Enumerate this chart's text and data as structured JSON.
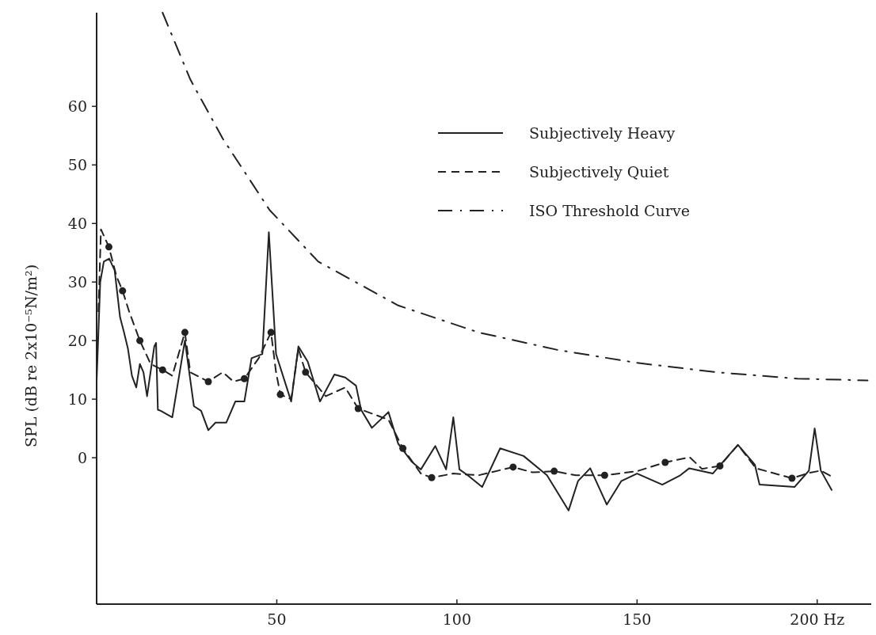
{
  "chart_data": {
    "type": "line",
    "ylabel": "SPL (dB re 2x10⁻⁵N/m²)",
    "xlim": [
      0,
      215
    ],
    "xticks": [
      50,
      100,
      150,
      {
        "value": 200,
        "label": "200 Hz"
      }
    ],
    "ylim": [
      -25,
      76
    ],
    "yticks": [
      0,
      10,
      20,
      30,
      40,
      50,
      60
    ],
    "grid": false,
    "legend": "top right",
    "series": [
      {
        "name": "Subjectively Heavy",
        "color": "#222222",
        "line_style": "solid",
        "x": [
          0,
          1,
          2,
          3.5,
          5,
          6.5,
          7.6,
          8.7,
          9.8,
          11,
          12,
          13,
          14,
          16,
          16.5,
          17,
          17.8,
          21,
          24.5,
          27,
          29,
          31,
          33,
          36,
          38.5,
          41,
          43,
          46,
          47.8,
          49.8,
          54,
          56,
          58.6,
          62,
          66,
          69,
          72,
          73.4,
          76.4,
          81,
          83.7,
          87.5,
          90,
          94,
          97,
          99,
          100.7,
          103,
          107,
          112,
          118.5,
          125,
          131,
          133.6,
          137,
          141.6,
          145.6,
          150,
          157,
          162,
          164.5,
          171,
          178,
          182.7,
          184,
          193.7,
          197.7,
          199.3,
          201,
          204
        ],
        "values": [
          13,
          30,
          33.5,
          34,
          32,
          24,
          21.4,
          18.6,
          14,
          12,
          16,
          14.6,
          10.5,
          19,
          19.6,
          8.2,
          8,
          6.9,
          20,
          8.8,
          8,
          4.7,
          6,
          6,
          9.6,
          9.6,
          17,
          17.7,
          38.5,
          17.7,
          9.6,
          19,
          16.4,
          9.6,
          14.2,
          13.7,
          12.3,
          8.2,
          5.1,
          7.8,
          2.4,
          -0.7,
          -2,
          2,
          -2,
          6.9,
          -2,
          -3,
          -5,
          1.6,
          0.3,
          -3,
          -9,
          -4,
          -1.8,
          -8,
          -4,
          -2.7,
          -4.6,
          -3,
          -1.8,
          -2.7,
          2.2,
          -1.2,
          -4.6,
          -5,
          -2.2,
          5,
          -2.2,
          -5.5
        ]
      },
      {
        "name": "Subjectively Quiet",
        "color": "#222222",
        "line_style": "dashed",
        "x": [
          0.5,
          1.2,
          3.4,
          5.5,
          7.2,
          9,
          12,
          15,
          18.3,
          21,
          24.5,
          26,
          31,
          35,
          38,
          41,
          45,
          48.4,
          49.8,
          51,
          54,
          56,
          58,
          63.6,
          69,
          72.6,
          81,
          85,
          90,
          93,
          99,
          106,
          115.6,
          121,
          127,
          133,
          141,
          150,
          157.8,
          164.6,
          168,
          173,
          178,
          183,
          193,
          197.7,
          201,
          204
        ],
        "values": [
          25,
          39,
          36,
          31,
          28.5,
          25,
          20,
          16,
          15,
          14,
          21.4,
          14.6,
          13,
          14.6,
          13,
          13.5,
          17,
          21.4,
          14.6,
          10.8,
          10,
          18.6,
          14.6,
          10.5,
          12,
          8.4,
          6.5,
          1.6,
          -2.7,
          -3.4,
          -2.7,
          -3,
          -1.6,
          -2.5,
          -2.3,
          -3,
          -3,
          -2.3,
          -0.8,
          0.1,
          -1.9,
          -1.4,
          2.2,
          -1.8,
          -3.5,
          -2.6,
          -2.2,
          -3.2
        ]
      },
      {
        "type": "scatter",
        "color": "#222222",
        "marker": "circle",
        "x": [
          3.4,
          7.2,
          12,
          18.3,
          24.5,
          31,
          41,
          48.4,
          51,
          58,
          72.6,
          85,
          93,
          115.6,
          127,
          141,
          157.8,
          173,
          193
        ],
        "values": [
          36,
          28.5,
          20,
          15,
          21.4,
          13,
          13.5,
          21.4,
          10.8,
          14.6,
          8.4,
          1.6,
          -3.4,
          -1.6,
          -2.3,
          -3,
          -0.8,
          -1.4,
          -3.5
        ]
      },
      {
        "name": "ISO Threshold Curve",
        "color": "#222222",
        "line_style": "dashdot",
        "x": [
          18.3,
          26,
          35,
          48,
          61.5,
          83.7,
          106,
          128,
          150,
          172,
          194.5,
          214
        ],
        "values": [
          76,
          64.6,
          54.5,
          42.3,
          33.5,
          26,
          21.4,
          18.4,
          16.2,
          14.6,
          13.5,
          13.2
        ]
      }
    ]
  }
}
